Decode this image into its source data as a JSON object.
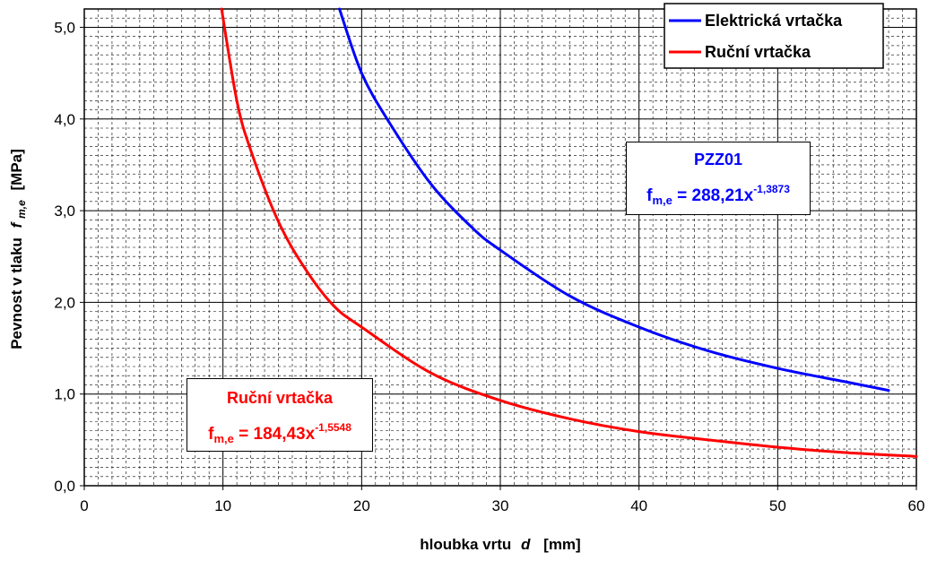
{
  "chart_data": {
    "type": "line",
    "xlabel": {
      "text": "hloubka vrtu",
      "var": "d",
      "unit": "[mm]"
    },
    "ylabel": {
      "text": "Pevnost v tlaku",
      "var": "f",
      "var_sub": "m,e",
      "unit": "[MPa]"
    },
    "xlim": [
      0,
      60
    ],
    "ylim": [
      0,
      5.2
    ],
    "x_ticks": [
      0,
      10,
      20,
      30,
      40,
      50,
      60
    ],
    "x_tick_labels": [
      "0",
      "10",
      "20",
      "30",
      "40",
      "50",
      "60"
    ],
    "y_ticks": [
      0,
      1,
      2,
      3,
      4,
      5
    ],
    "y_tick_labels": [
      "0,0",
      "1,0",
      "2,0",
      "3,0",
      "4,0",
      "5,0"
    ],
    "grid": true,
    "legend_position": "top-right",
    "series": [
      {
        "name": "Elektrická vrtačka",
        "color": "#0000ff",
        "x": [
          18.4,
          20,
          22,
          25,
          28,
          30,
          35,
          40,
          45,
          50,
          55,
          58
        ],
        "y": [
          5.2,
          4.5,
          3.96,
          3.29,
          2.81,
          2.57,
          2.07,
          1.73,
          1.47,
          1.28,
          1.13,
          1.04
        ]
      },
      {
        "name": "Ruční vrtačka",
        "color": "#ff0000",
        "x": [
          9.9,
          11,
          12,
          14,
          16,
          18,
          20,
          25,
          30,
          35,
          40,
          45,
          50,
          55,
          60
        ],
        "y": [
          5.2,
          4.2,
          3.66,
          2.88,
          2.35,
          1.96,
          1.73,
          1.23,
          0.93,
          0.73,
          0.59,
          0.5,
          0.42,
          0.36,
          0.32
        ]
      }
    ],
    "annotations": [
      {
        "title": "PZZ01",
        "var": "f",
        "sub": "m,e",
        "formula": " = 288,21x",
        "exp": "-1,3873",
        "color": "#0000ff"
      },
      {
        "title": "Ruční vrtačka",
        "var": "f",
        "sub": "m,e",
        "formula": " = 184,43x",
        "exp": "-1,5548",
        "color": "#ff0000"
      }
    ]
  }
}
